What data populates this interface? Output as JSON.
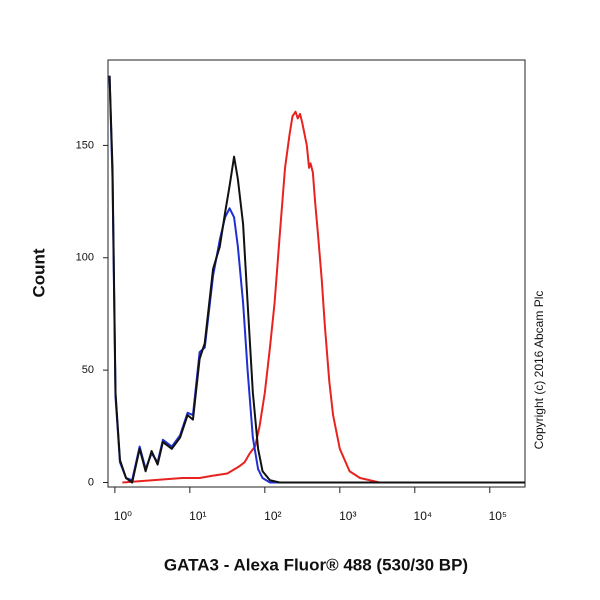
{
  "chart_data": {
    "type": "line",
    "x_label": "GATA3 - Alexa Fluor® 488 (530/30 BP)",
    "y_label": "Count",
    "annotation": "Copyright (c) 2016 Abcam Plc",
    "log_x": true,
    "xlim": [
      0.81,
      295000
    ],
    "ylim": [
      -2,
      188
    ],
    "xticks": [
      {
        "value": 1,
        "label": "10⁰"
      },
      {
        "value": 10,
        "label": "10¹"
      },
      {
        "value": 100,
        "label": "10²"
      },
      {
        "value": 1000,
        "label": "10³"
      },
      {
        "value": 10000,
        "label": "10⁴"
      },
      {
        "value": 100000,
        "label": "10⁵"
      }
    ],
    "yticks": [
      0,
      50,
      100,
      150
    ],
    "series": [
      {
        "color": "#e8231f",
        "x": [
          1.26,
          3.16,
          7.94,
          13.5,
          20.0,
          31.6,
          44.7,
          53.7,
          63.1,
          74.1,
          85.1,
          100,
          117,
          135,
          158,
          186,
          214,
          234,
          257,
          275,
          295,
          316,
          363,
          389,
          407,
          437,
          468,
          513,
          575,
          631,
          724,
          813,
          1000,
          1350,
          1860,
          3390,
          295000
        ],
        "values": [
          0,
          1,
          2,
          2,
          3,
          4,
          7,
          9,
          13,
          16,
          25,
          40,
          60,
          80,
          110,
          140,
          155,
          163,
          165,
          162,
          164,
          160,
          150,
          140,
          142,
          138,
          125,
          110,
          90,
          70,
          45,
          30,
          15,
          5,
          2,
          0,
          0
        ]
      },
      {
        "color": "#1f2fd0",
        "x": [
          0.85,
          0.93,
          1.02,
          1.17,
          1.41,
          1.7,
          2.14,
          2.57,
          3.09,
          3.72,
          4.37,
          5.75,
          7.41,
          9.33,
          11.0,
          13.5,
          15.8,
          20.4,
          25.1,
          29.5,
          33.9,
          38.9,
          43.7,
          51.3,
          58.9,
          69.2,
          81.3,
          93.3,
          117,
          158,
          1000,
          295000
        ],
        "values": [
          181,
          135,
          38,
          9,
          2,
          1,
          16,
          6,
          13,
          9,
          19,
          16,
          21,
          31,
          30,
          58,
          60,
          92,
          108,
          118,
          122,
          118,
          105,
          80,
          50,
          20,
          6,
          2,
          0,
          0,
          0,
          0
        ]
      },
      {
        "color": "#111111",
        "x": [
          0.85,
          0.93,
          1.02,
          1.17,
          1.41,
          1.7,
          2.14,
          2.57,
          3.09,
          3.72,
          4.37,
          5.75,
          7.41,
          9.33,
          11.0,
          13.5,
          15.8,
          20.4,
          25.1,
          29.5,
          33.9,
          38.9,
          43.7,
          51.3,
          58.9,
          69.2,
          81.3,
          93.3,
          117,
          158,
          1000,
          295000
        ],
        "values": [
          181,
          140,
          40,
          10,
          2,
          0,
          15,
          5,
          14,
          8,
          18,
          15,
          20,
          30,
          28,
          55,
          62,
          95,
          105,
          120,
          132,
          145,
          135,
          115,
          80,
          40,
          15,
          5,
          1,
          0,
          0,
          0
        ]
      }
    ]
  }
}
